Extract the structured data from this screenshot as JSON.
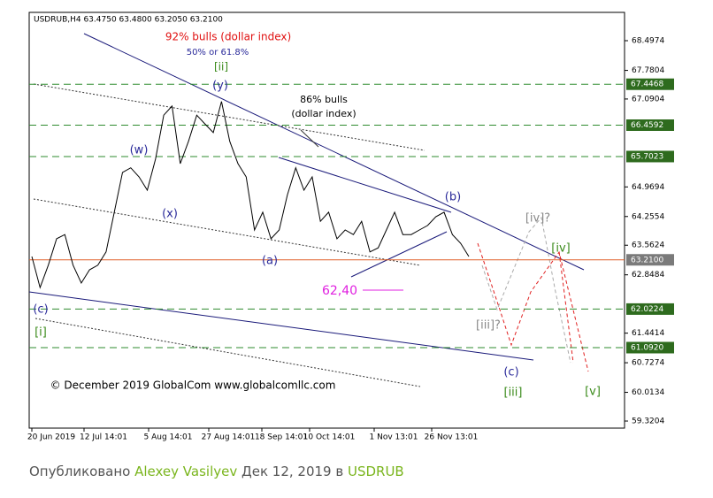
{
  "chart_data": {
    "type": "line",
    "header": "USDRUB,H4  63.4750 63.4800 63.2050 63.2100",
    "values": [
      63.29,
      62.54,
      63.08,
      63.72,
      63.82,
      63.08,
      62.65,
      62.97,
      63.08,
      63.4,
      64.36,
      65.32,
      65.43,
      65.21,
      64.89,
      65.64,
      66.7,
      66.92,
      65.53,
      66.07,
      66.7,
      66.49,
      66.28,
      67.03,
      66.07,
      65.53,
      65.21,
      63.93,
      64.36,
      63.72,
      63.93,
      64.78,
      65.43,
      64.89,
      65.21,
      64.14,
      64.36,
      63.72,
      63.93,
      63.82,
      64.14,
      63.4,
      63.5,
      63.93,
      64.36,
      63.82,
      63.82,
      63.93,
      64.04,
      64.25,
      64.36,
      63.82,
      63.61,
      63.29
    ],
    "color": "#000000",
    "ylim": [
      59.15,
      69.18
    ],
    "yticks": [
      68.4974,
      67.7804,
      67.0904,
      64.9694,
      64.2554,
      63.5624,
      62.8484,
      61.4414,
      60.7274,
      60.0134,
      59.3204
    ],
    "levels": [
      {
        "value": 67.4468,
        "label": "67.4468",
        "color": "#2e6b1e",
        "line_color": "#2e8b2e"
      },
      {
        "value": 66.4592,
        "label": "66.4592",
        "color": "#2e6b1e",
        "line_color": "#2e8b2e"
      },
      {
        "value": 65.7023,
        "label": "65.7023",
        "color": "#2e6b1e",
        "line_color": "#2e8b2e"
      },
      {
        "value": 63.21,
        "label": "63.2100",
        "color": "#7a7a7a",
        "line_color": "#e0602a"
      },
      {
        "value": 62.0224,
        "label": "62.0224",
        "color": "#2e6b1e",
        "line_color": "#2e8b2e"
      },
      {
        "value": 61.092,
        "label": "61.0920",
        "color": "#2e6b1e",
        "line_color": "#2e8b2e"
      }
    ],
    "xtick_labels": [
      "20 Jun 2019",
      "12 Jul 14:01",
      "5 Aug 14:01",
      "27 Aug 14:01",
      "18 Sep 14:01",
      "10 Oct 14:01",
      "1 Nov 13:01",
      "26 Nov 13:01"
    ],
    "annotations": [
      {
        "text": "92% bulls  (dollar index)",
        "color": "#e01010"
      },
      {
        "text": "50% or 61.8%",
        "color": "#2a2a9a"
      },
      {
        "text": "[ii]",
        "color": "#3a8a1a"
      },
      {
        "text": "(y)",
        "color": "#2a2a9a"
      },
      {
        "text": "86% bulls",
        "color": "#000000"
      },
      {
        "text": "(dollar index)",
        "color": "#000000"
      },
      {
        "text": "(w)",
        "color": "#2a2a9a"
      },
      {
        "text": "(x)",
        "color": "#2a2a9a"
      },
      {
        "text": "(a)",
        "color": "#2a2a9a"
      },
      {
        "text": "(b)",
        "color": "#2a2a9a"
      },
      {
        "text": "[iv]?",
        "color": "#888888"
      },
      {
        "text": "[iv]",
        "color": "#3a8a1a"
      },
      {
        "text": "62,40",
        "color": "#e020e0"
      },
      {
        "text": "(c)",
        "color": "#2a2a9a"
      },
      {
        "text": "[i]",
        "color": "#3a8a1a"
      },
      {
        "text": "[iii]?",
        "color": "#888888"
      },
      {
        "text": "(c)",
        "color": "#2a2a9a"
      },
      {
        "text": "[iii]",
        "color": "#3a8a1a"
      },
      {
        "text": "[v]",
        "color": "#3a8a1a"
      },
      {
        "text": "© December 2019 GlobalCom www.globalcomllc.com",
        "color": "#000000"
      }
    ]
  },
  "footer": {
    "prefix": "Опубликовано",
    "author": "Alexey Vasilyev",
    "date": "Дек 12, 2019 в",
    "symbol": "USDRUB"
  }
}
